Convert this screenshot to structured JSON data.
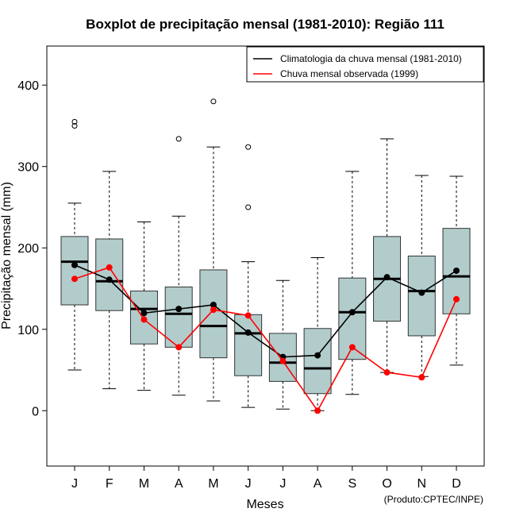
{
  "chart_data": {
    "type": "box",
    "title": "Boxplot de precipitação mensal (1981-2010): Região 111",
    "xlabel": "Meses",
    "ylabel": "Precipitação mensal (mm)",
    "ylim": [
      -68,
      448
    ],
    "yticks": [
      0,
      100,
      200,
      300,
      400
    ],
    "categories": [
      "J",
      "F",
      "M",
      "A",
      "M",
      "J",
      "J",
      "A",
      "S",
      "O",
      "N",
      "D"
    ],
    "boxes": [
      {
        "whisker_low": 50,
        "q1": 130,
        "median": 183,
        "q3": 214,
        "whisker_high": 255,
        "outliers": [
          350,
          355
        ]
      },
      {
        "whisker_low": 27,
        "q1": 123,
        "median": 159,
        "q3": 211,
        "whisker_high": 294,
        "outliers": []
      },
      {
        "whisker_low": 25,
        "q1": 82,
        "median": 125,
        "q3": 147,
        "whisker_high": 232,
        "outliers": []
      },
      {
        "whisker_low": 19,
        "q1": 78,
        "median": 119,
        "q3": 152,
        "whisker_high": 239,
        "outliers": [
          334
        ]
      },
      {
        "whisker_low": 12,
        "q1": 65,
        "median": 104,
        "q3": 173,
        "whisker_high": 324,
        "outliers": [
          380
        ]
      },
      {
        "whisker_low": 4,
        "q1": 43,
        "median": 95,
        "q3": 118,
        "whisker_high": 183,
        "outliers": [
          250,
          324
        ]
      },
      {
        "whisker_low": 2,
        "q1": 36,
        "median": 59,
        "q3": 95,
        "whisker_high": 160,
        "outliers": []
      },
      {
        "whisker_low": 0,
        "q1": 21,
        "median": 52,
        "q3": 101,
        "whisker_high": 188,
        "outliers": []
      },
      {
        "whisker_low": 20,
        "q1": 63,
        "median": 121,
        "q3": 163,
        "whisker_high": 294,
        "outliers": []
      },
      {
        "whisker_low": 47,
        "q1": 110,
        "median": 162,
        "q3": 214,
        "whisker_high": 334,
        "outliers": []
      },
      {
        "whisker_low": 42,
        "q1": 92,
        "median": 147,
        "q3": 190,
        "whisker_high": 289,
        "outliers": []
      },
      {
        "whisker_low": 56,
        "q1": 119,
        "median": 165,
        "q3": 224,
        "whisker_high": 288,
        "outliers": []
      }
    ],
    "series": [
      {
        "name": "Climatologia da chuva mensal (1981-2010)",
        "color": "#000000",
        "values": [
          179,
          161,
          120,
          125,
          130,
          96,
          66,
          68,
          121,
          164,
          145,
          172
        ]
      },
      {
        "name": "Chuva mensal observada (1999)",
        "color": "#ff0000",
        "values": [
          162,
          176,
          112,
          78,
          124,
          117,
          61,
          0,
          78,
          47,
          41,
          137
        ]
      }
    ],
    "box_fill": "#b2cccc",
    "legend_position": "top-right",
    "credit": "(Produto:CPTEC/INPE)"
  }
}
